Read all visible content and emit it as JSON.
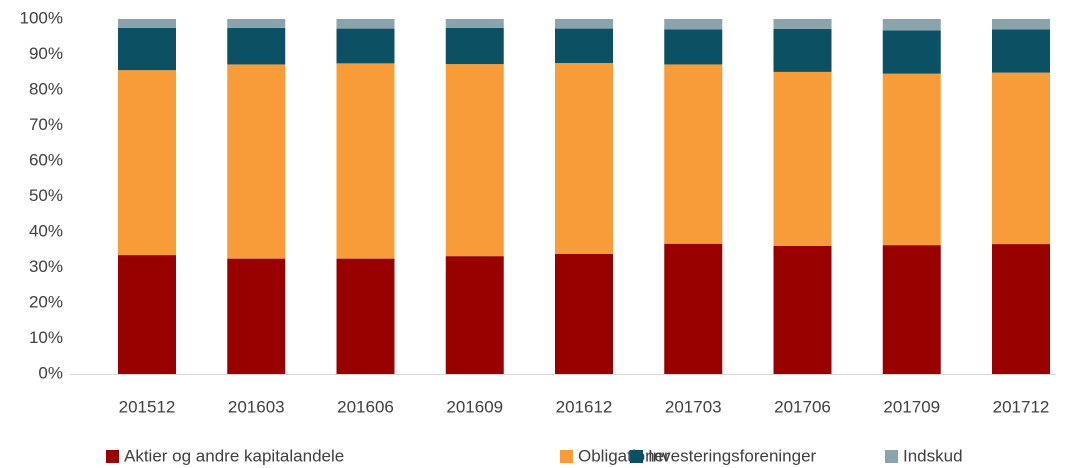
{
  "chart_data": {
    "type": "stacked_bar",
    "categories": [
      "201512",
      "201603",
      "201606",
      "201609",
      "201612",
      "201703",
      "201706",
      "201709",
      "201712"
    ],
    "series": [
      {
        "name": "Aktier og andre kapitalandele",
        "color": "#990000",
        "values": [
          33.5,
          32.5,
          32.5,
          33.2,
          33.8,
          36.7,
          36.1,
          36.3,
          36.6
        ]
      },
      {
        "name": "Obligationer",
        "color": "#f79c38",
        "values": [
          52.1,
          54.7,
          55.0,
          54.1,
          53.8,
          50.5,
          49.0,
          48.3,
          48.3
        ]
      },
      {
        "name": "Investeringsforeninger",
        "color": "#0b5163",
        "values": [
          11.9,
          10.3,
          9.8,
          10.2,
          9.7,
          9.9,
          12.1,
          12.2,
          12.2
        ]
      },
      {
        "name": "Indskud",
        "color": "#8aa3ad",
        "values": [
          2.5,
          2.5,
          2.7,
          2.5,
          2.7,
          2.9,
          2.8,
          3.2,
          2.9
        ]
      }
    ],
    "ylim": [
      0,
      100
    ],
    "yticks": [
      {
        "value": 0,
        "label": "0%"
      },
      {
        "value": 10,
        "label": "10%"
      },
      {
        "value": 20,
        "label": "20%"
      },
      {
        "value": 30,
        "label": "30%"
      },
      {
        "value": 40,
        "label": "40%"
      },
      {
        "value": 50,
        "label": "50%"
      },
      {
        "value": 60,
        "label": "60%"
      },
      {
        "value": 70,
        "label": "70%"
      },
      {
        "value": 80,
        "label": "80%"
      },
      {
        "value": 90,
        "label": "90%"
      },
      {
        "value": 100,
        "label": "100%"
      }
    ],
    "legend": "bottom"
  }
}
